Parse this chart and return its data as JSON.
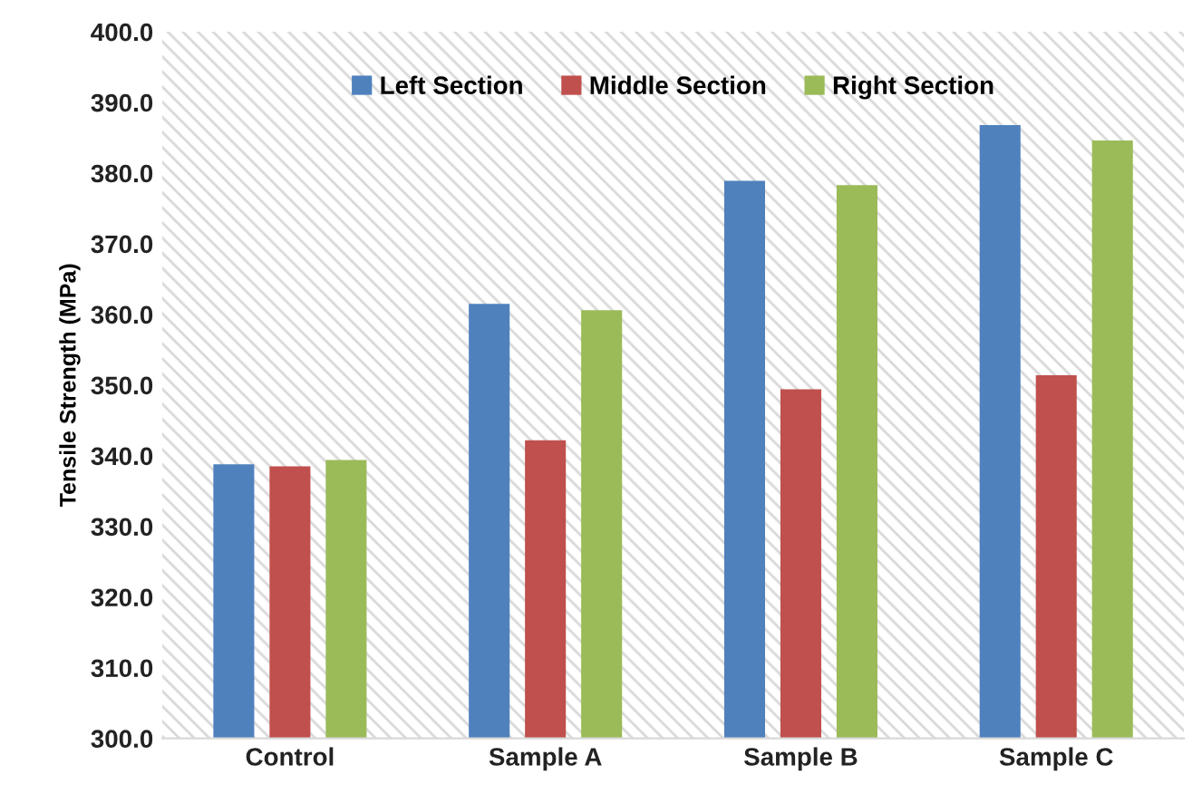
{
  "chart_data": {
    "type": "bar",
    "ylabel": "Tensile Strength (MPa)",
    "categories": [
      "Control",
      "Sample A",
      "Sample B",
      "Sample C"
    ],
    "series": [
      {
        "name": "Left Section",
        "color": "#4f81bd",
        "values": [
          338.8,
          361.5,
          378.9,
          386.8
        ]
      },
      {
        "name": "Middle Section",
        "color": "#c0504d",
        "values": [
          338.5,
          342.2,
          349.4,
          351.4
        ]
      },
      {
        "name": "Right Section",
        "color": "#9bbb59",
        "values": [
          339.4,
          360.6,
          378.3,
          384.6
        ]
      }
    ],
    "ylim": [
      300,
      400
    ],
    "yticks": [
      {
        "value": 300,
        "label": "300.0"
      },
      {
        "value": 310,
        "label": "310.0"
      },
      {
        "value": 320,
        "label": "320.0"
      },
      {
        "value": 330,
        "label": "330.0"
      },
      {
        "value": 340,
        "label": "340.0"
      },
      {
        "value": 350,
        "label": "350.0"
      },
      {
        "value": 360,
        "label": "360.0"
      },
      {
        "value": 370,
        "label": "370.0"
      },
      {
        "value": 380,
        "label": "380.0"
      },
      {
        "value": 390,
        "label": "390.0"
      },
      {
        "value": 400,
        "label": "400.0"
      }
    ],
    "grid": false,
    "legend": "top"
  }
}
